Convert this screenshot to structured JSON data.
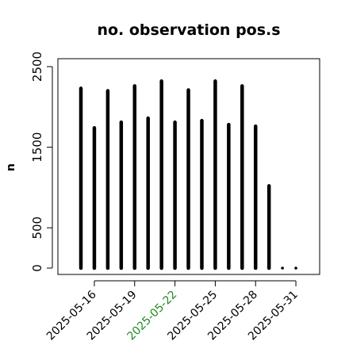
{
  "chart_data": {
    "type": "bar",
    "title": "no. observation pos.s",
    "xlabel": "",
    "ylabel": "n",
    "x": [
      "2025-05-15",
      "2025-05-16",
      "2025-05-17",
      "2025-05-18",
      "2025-05-19",
      "2025-05-20",
      "2025-05-21",
      "2025-05-22",
      "2025-05-23",
      "2025-05-24",
      "2025-05-25",
      "2025-05-26",
      "2025-05-27",
      "2025-05-28",
      "2025-05-29",
      "2025-05-30",
      "2025-05-31"
    ],
    "values": [
      2230,
      1740,
      2200,
      1810,
      2260,
      1860,
      2320,
      1810,
      2210,
      1830,
      2320,
      1780,
      2260,
      1760,
      1020,
      0,
      0
    ],
    "ylim": [
      0,
      2600
    ],
    "yticks": [
      0,
      500,
      1500,
      2500
    ],
    "ytick_labels": [
      "0",
      "500",
      "1500",
      "2500"
    ],
    "xticks": [
      "2025-05-16",
      "2025-05-19",
      "2025-05-22",
      "2025-05-25",
      "2025-05-28",
      "2025-05-31"
    ],
    "xtick_labels": [
      "2025-05-16",
      "2025-05-19",
      "2025-05-22",
      "2025-05-25",
      "2025-05-28",
      "2025-05-31"
    ],
    "highlight_tick": "2025-05-22",
    "colors": {
      "bars": "#000000",
      "highlight": "#228b22",
      "axis": "#000000"
    },
    "grid": false,
    "legend": "none"
  }
}
